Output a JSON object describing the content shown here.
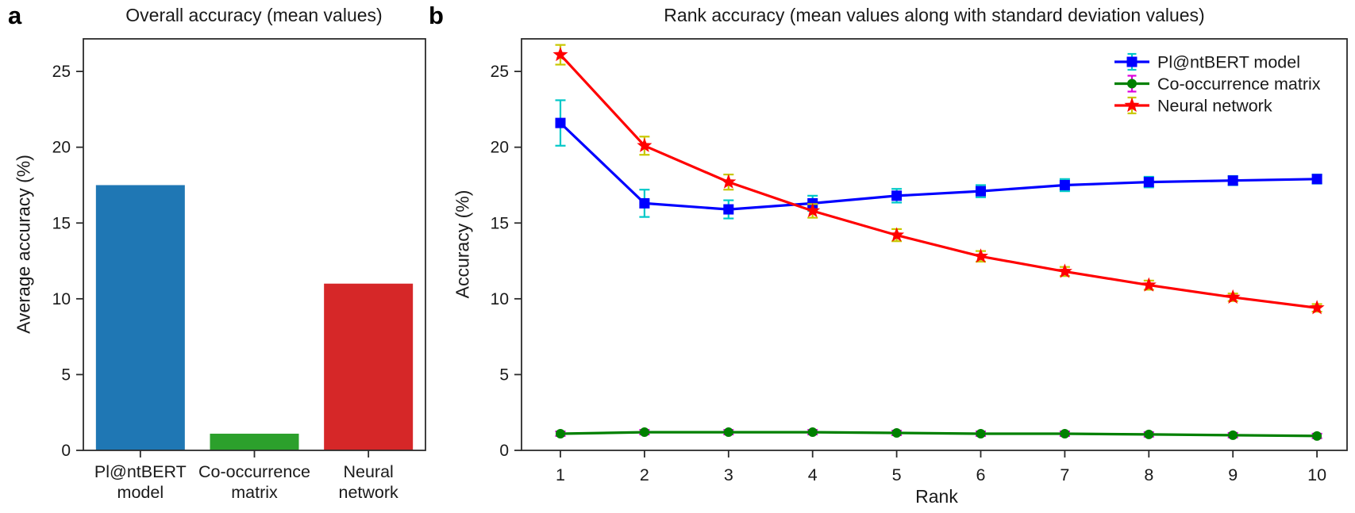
{
  "panels": {
    "a": {
      "label": "a"
    },
    "b": {
      "label": "b"
    }
  },
  "style": {
    "frame_color": "#2b2b2b",
    "text_color": "#1a1a1a"
  },
  "chart_data": [
    {
      "id": "overall-accuracy-bar",
      "type": "bar",
      "title": "Overall accuracy (mean values)",
      "xlabel": "",
      "ylabel": "Average accuracy (%)",
      "categories": [
        "Pl@ntBERT model",
        "Co-occurrence matrix",
        "Neural network"
      ],
      "category_lines": [
        [
          "Pl@ntBERT",
          "model"
        ],
        [
          "Co-occurrence",
          "matrix"
        ],
        [
          "Neural",
          "network"
        ]
      ],
      "values": [
        17.5,
        1.1,
        11.0
      ],
      "bar_colors": [
        "#1f77b4",
        "#2ca02c",
        "#d62728"
      ],
      "ylim": [
        0,
        27.15
      ],
      "yticks": [
        0,
        5,
        10,
        15,
        20,
        25
      ],
      "grid": false
    },
    {
      "id": "rank-accuracy-line",
      "type": "line",
      "title": "Rank accuracy (mean values along with standard deviation values)",
      "xlabel": "Rank",
      "ylabel": "Accuracy (%)",
      "x": [
        1,
        2,
        3,
        4,
        5,
        6,
        7,
        8,
        9,
        10
      ],
      "xticks": [
        1,
        2,
        3,
        4,
        5,
        6,
        7,
        8,
        9,
        10
      ],
      "ylim": [
        0,
        27.15
      ],
      "yticks": [
        0,
        5,
        10,
        15,
        20,
        25
      ],
      "grid": false,
      "legend_position": "upper right",
      "series": [
        {
          "name": "Pl@ntBERT model",
          "marker": "square",
          "color": "#0000ff",
          "error_color": "#00c8c8",
          "values": [
            21.6,
            16.3,
            15.9,
            16.3,
            16.8,
            17.1,
            17.5,
            17.7,
            17.8,
            17.9
          ],
          "errors": [
            1.5,
            0.9,
            0.6,
            0.5,
            0.45,
            0.4,
            0.4,
            0.35,
            0.3,
            0.3
          ]
        },
        {
          "name": "Co-occurrence matrix",
          "marker": "circle",
          "color": "#008000",
          "error_color": "#dd00dd",
          "values": [
            1.1,
            1.2,
            1.2,
            1.2,
            1.15,
            1.1,
            1.1,
            1.05,
            1.0,
            0.95
          ],
          "errors": [
            0.15,
            0.15,
            0.15,
            0.15,
            0.15,
            0.15,
            0.15,
            0.15,
            0.15,
            0.15
          ]
        },
        {
          "name": "Neural network",
          "marker": "star",
          "color": "#ff0000",
          "error_color": "#c8c800",
          "values": [
            26.1,
            20.1,
            17.7,
            15.8,
            14.2,
            12.8,
            11.8,
            10.9,
            10.1,
            9.4
          ],
          "errors": [
            0.65,
            0.6,
            0.5,
            0.45,
            0.4,
            0.35,
            0.3,
            0.3,
            0.25,
            0.25
          ]
        }
      ]
    }
  ]
}
